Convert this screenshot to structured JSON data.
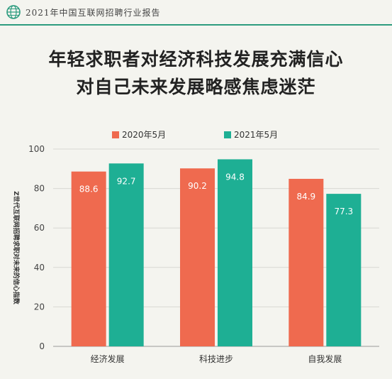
{
  "header": {
    "title": "2021年中国互联网招聘行业报告",
    "logo_icon": "globe-icon"
  },
  "colors": {
    "accent": "#2d9c7f",
    "series_2020": "#ef6a4f",
    "series_2021": "#1eaf94"
  },
  "chart_data": {
    "type": "bar",
    "title": "年轻求职者对经济科技发展充满信心",
    "subtitle": "对自己未来发展略感焦虑迷茫",
    "ylabel": "Z世代互联网招聘求职对未来的信心指数",
    "xlabel": "",
    "categories": [
      "经济发展",
      "科技进步",
      "自我发展"
    ],
    "series": [
      {
        "name": "2020年5月",
        "values": [
          88.6,
          90.2,
          84.9
        ],
        "color": "#ef6a4f"
      },
      {
        "name": "2021年5月",
        "values": [
          92.7,
          94.8,
          77.3
        ],
        "color": "#1eaf94"
      }
    ],
    "ylim": [
      0,
      100
    ],
    "yticks": [
      0,
      20,
      40,
      60,
      80,
      100
    ],
    "grid": true,
    "legend": "top"
  }
}
